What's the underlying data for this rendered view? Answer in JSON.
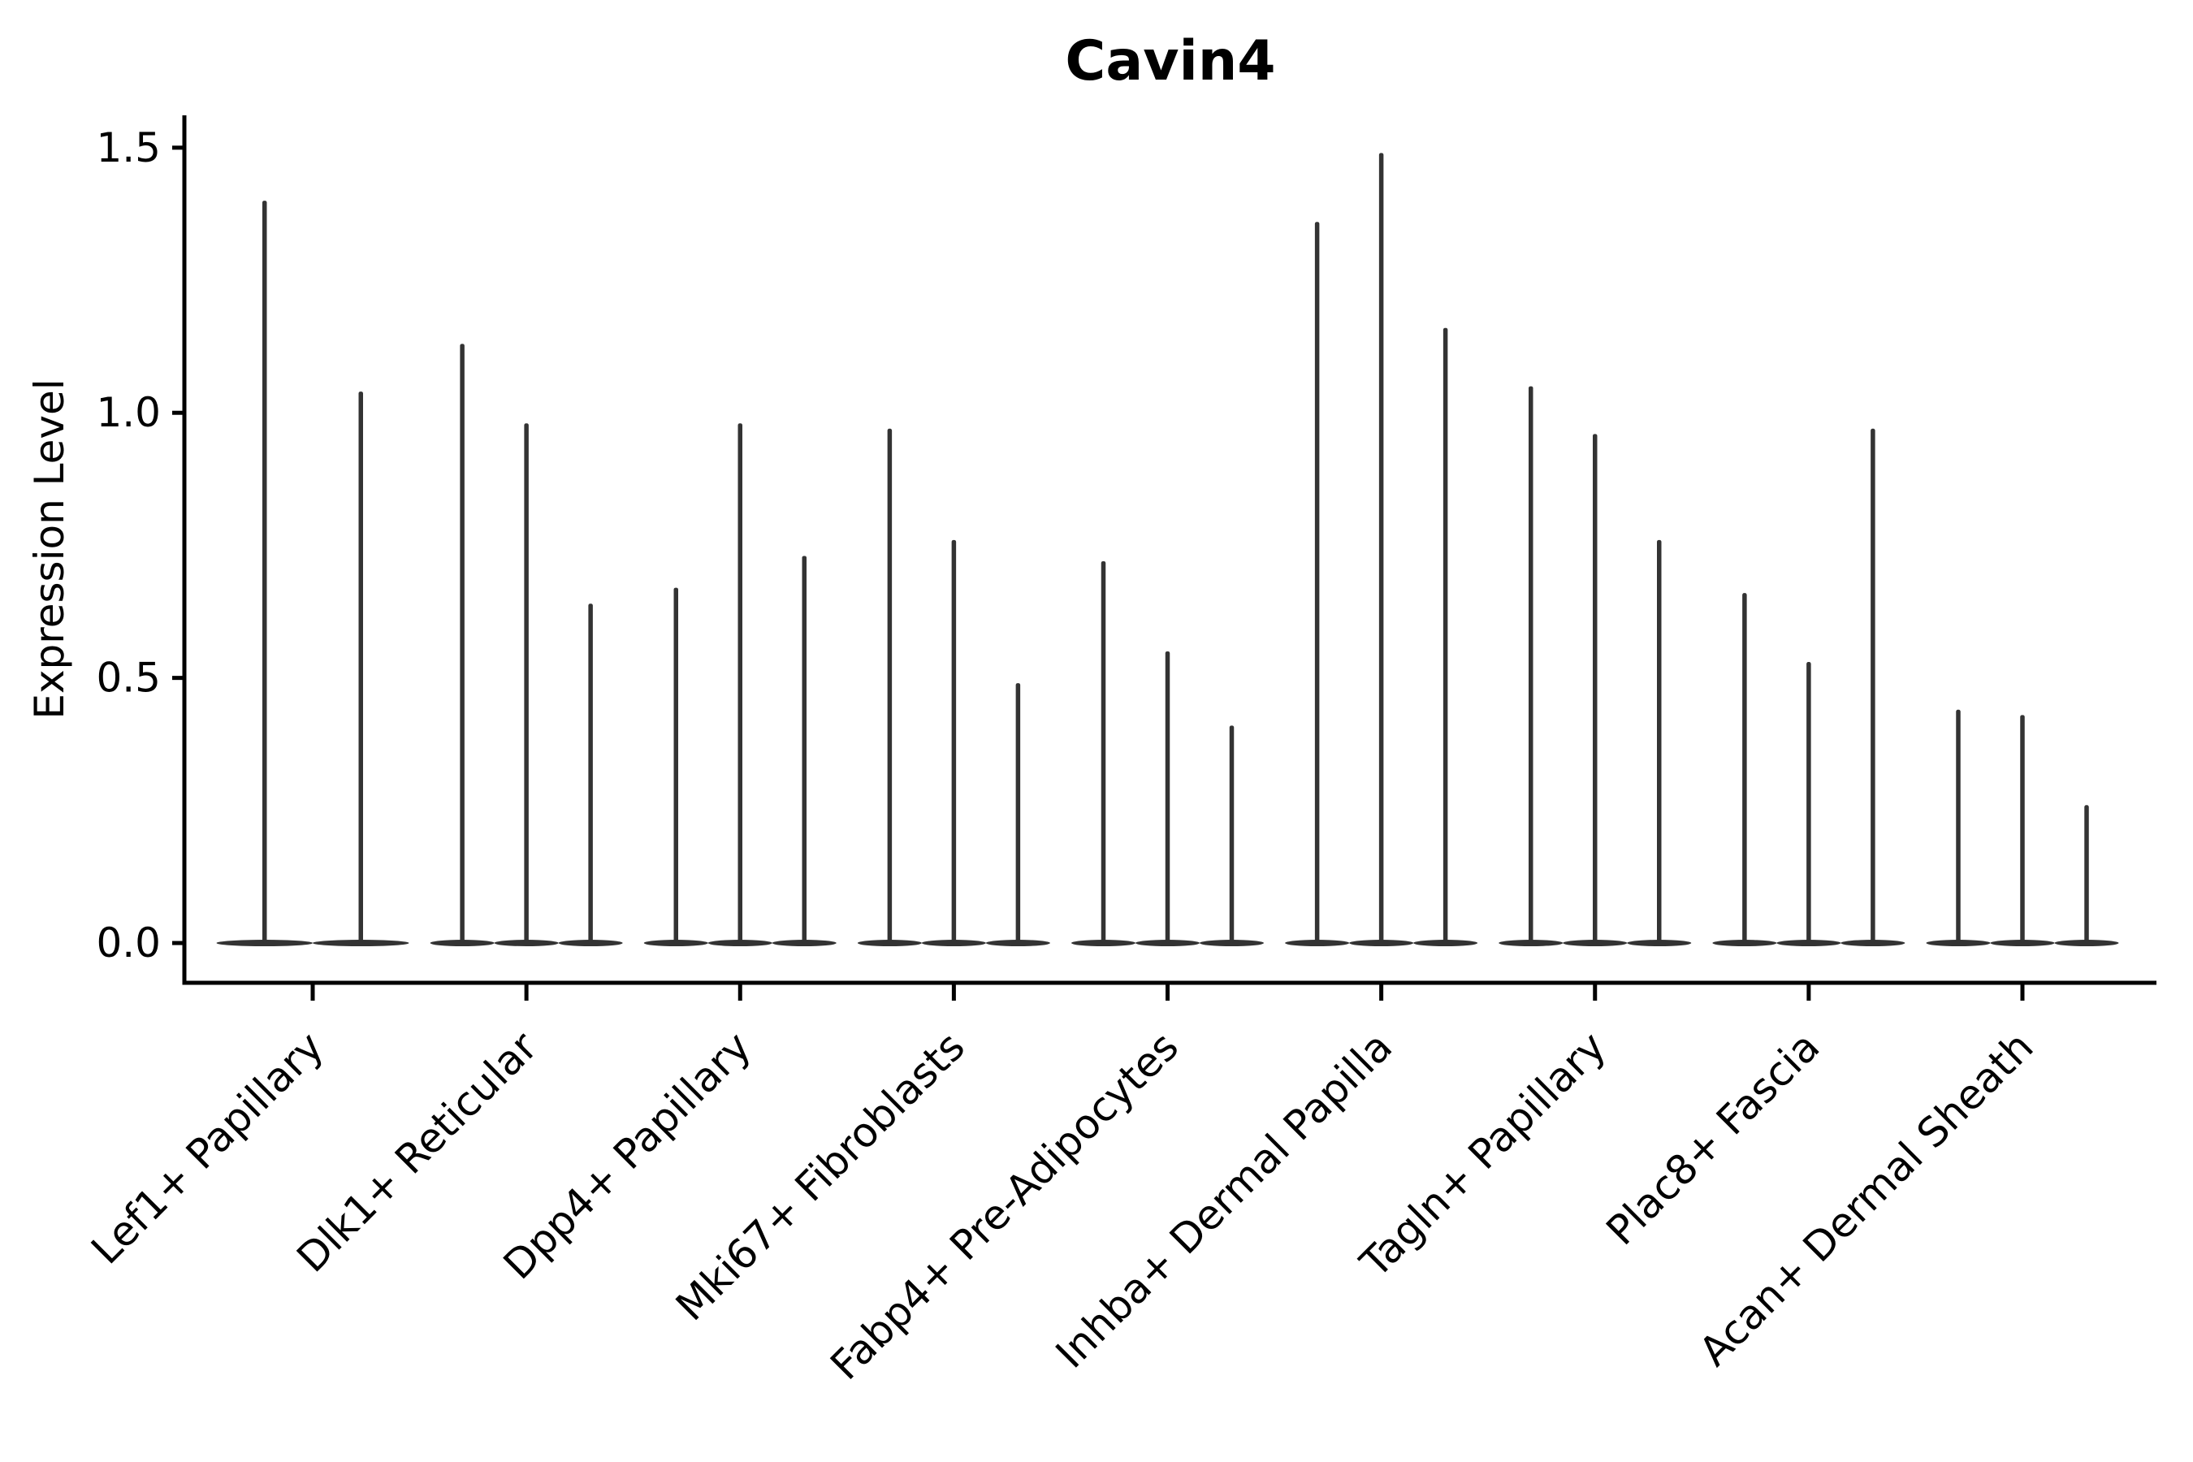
{
  "title": "Cavin4",
  "ylabel": "Expression Level",
  "colors": {
    "violin": "#333333",
    "axis": "#000000",
    "text": "#000000",
    "background": "#ffffff"
  },
  "chart_data": {
    "type": "violin",
    "title": "Cavin4",
    "xlabel": "",
    "ylabel": "Expression Level",
    "ylim": [
      -0.075,
      1.561
    ],
    "yticks": [
      0.0,
      0.5,
      1.0,
      1.5
    ],
    "ytick_labels": [
      "0.0",
      "0.5",
      "1.0",
      "1.5"
    ],
    "grid": false,
    "legend": "none",
    "violin_style": "narrow-spike-with-flat-base-at-zero",
    "categories": [
      "Lef1+ Papillary",
      "Dlk1+ Reticular",
      "Dpp4+ Papillary",
      "Mki67+ Fibroblasts",
      "Fabp4+ Pre-Adipocytes",
      "Inhba+ Dermal Papilla",
      "Tagln+ Papillary",
      "Plac8+ Fascia",
      "Acan+ Dermal Sheath"
    ],
    "series": [
      {
        "category": "Lef1+ Papillary",
        "violin_max_values": [
          1.4,
          1.04
        ]
      },
      {
        "category": "Dlk1+ Reticular",
        "violin_max_values": [
          1.13,
          0.98,
          0.64
        ]
      },
      {
        "category": "Dpp4+ Papillary",
        "violin_max_values": [
          0.67,
          0.98,
          0.73
        ]
      },
      {
        "category": "Mki67+ Fibroblasts",
        "violin_max_values": [
          0.97,
          0.76,
          0.49
        ]
      },
      {
        "category": "Fabp4+ Pre-Adipocytes",
        "violin_max_values": [
          0.72,
          0.55,
          0.41
        ]
      },
      {
        "category": "Inhba+ Dermal Papilla",
        "violin_max_values": [
          1.36,
          1.49,
          1.16
        ]
      },
      {
        "category": "Tagln+ Papillary",
        "violin_max_values": [
          1.05,
          0.96,
          0.76
        ]
      },
      {
        "category": "Plac8+ Fascia",
        "violin_max_values": [
          0.66,
          0.53,
          0.97
        ]
      },
      {
        "category": "Acan+ Dermal Sheath",
        "violin_max_values": [
          0.44,
          0.43,
          0.26
        ]
      }
    ]
  }
}
